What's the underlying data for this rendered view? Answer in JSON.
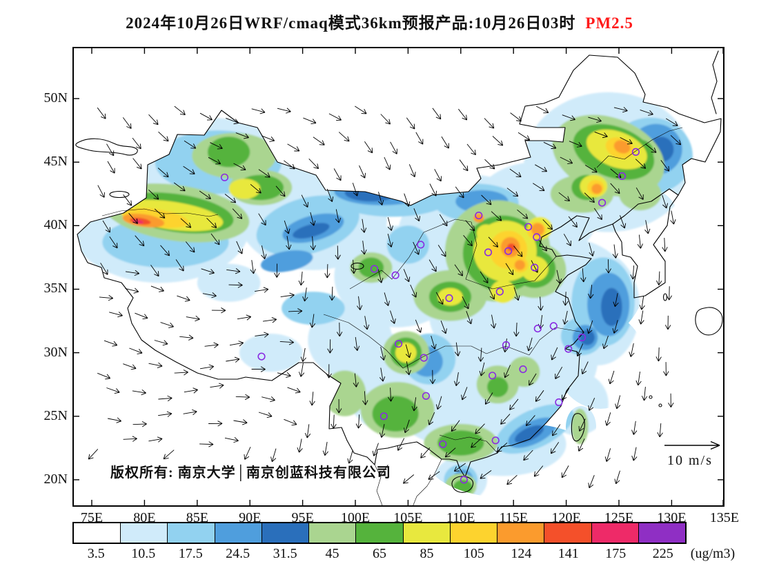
{
  "title": {
    "main": "2024年10月26日WRF/cmaq模式36km预报产品:10月26日03时",
    "species": "PM2.5",
    "species_color": "#ff1a1a"
  },
  "axes": {
    "lat_labels": [
      "50N",
      "45N",
      "40N",
      "35N",
      "30N",
      "25N",
      "20N"
    ],
    "lon_labels": [
      "75E",
      "80E",
      "85E",
      "90E",
      "95E",
      "100E",
      "105E",
      "110E",
      "115E",
      "120E",
      "125E",
      "130E",
      "135E"
    ]
  },
  "footer": {
    "copyright": "版权所有: 南京大学│南京创蓝科技有限公司"
  },
  "wind_legend": {
    "label": "10 m/s"
  },
  "colorbar": {
    "unit": "(ug/m3)",
    "labels": [
      "3.5",
      "10.5",
      "17.5",
      "24.5",
      "31.5",
      "45",
      "65",
      "85",
      "105",
      "124",
      "141",
      "175",
      "225"
    ],
    "colors": [
      "#ffffff",
      "#d0ebfa",
      "#92d2f0",
      "#4f9edd",
      "#2a6fbb",
      "#aad590",
      "#55b33c",
      "#e8e83e",
      "#fdd32e",
      "#fb9b2d",
      "#f4502a",
      "#ee2a68",
      "#8f2fc4"
    ]
  },
  "chart_data": {
    "type": "heatmap",
    "variant": "filled contour forecast map with wind vectors",
    "variable": "PM2.5",
    "unit": "ug/m3",
    "model": "WRF/cmaq 模式 36km 预报产品",
    "valid_time_label": "2024年10月26日 / 10月26日03时",
    "lon_range": [
      75,
      135
    ],
    "lat_range": [
      20,
      50
    ],
    "contour_levels": [
      3.5,
      10.5,
      17.5,
      24.5,
      31.5,
      45,
      65,
      85,
      105,
      124,
      141,
      175,
      225
    ],
    "palette": [
      "#ffffff",
      "#d0ebfa",
      "#92d2f0",
      "#4f9edd",
      "#2a6fbb",
      "#aad590",
      "#55b33c",
      "#e8e83e",
      "#fdd32e",
      "#fb9b2d",
      "#f4502a",
      "#ee2a68",
      "#8f2fc4"
    ],
    "wind_reference_ms": 10,
    "high_value_regions": [
      {
        "region": "Tarim Basin southern Xinjiang ~78-85E, 39-41.5N",
        "approx_range_ugm3": [
          65,
          175
        ]
      },
      {
        "region": "North China Plain Hebei-Shandong-Henan ~112-118E, 34-40N",
        "approx_range_ugm3": [
          45,
          141
        ]
      },
      {
        "region": "Northeast China ~121-127E, 42-47N",
        "approx_range_ugm3": [
          45,
          124
        ]
      },
      {
        "region": "Sichuan Basin ~103-107E, 29-31.5N",
        "approx_range_ugm3": [
          31.5,
          85
        ]
      },
      {
        "region": "Tibetan Plateau and Mongolia border band",
        "approx_range_ugm3": [
          0,
          10.5
        ]
      }
    ]
  },
  "map": {
    "city_marker_color": "#8a2be2",
    "cities": [
      [
        87.6,
        43.8
      ],
      [
        111.7,
        40.8
      ],
      [
        116.4,
        39.9
      ],
      [
        117.2,
        39.1
      ],
      [
        114.5,
        38.0
      ],
      [
        112.6,
        37.9
      ],
      [
        123.4,
        41.8
      ],
      [
        125.3,
        43.9
      ],
      [
        126.6,
        45.8
      ],
      [
        117.0,
        36.7
      ],
      [
        113.7,
        34.8
      ],
      [
        108.9,
        34.3
      ],
      [
        103.8,
        36.1
      ],
      [
        101.8,
        36.6
      ],
      [
        106.2,
        38.5
      ],
      [
        91.1,
        29.7
      ],
      [
        104.1,
        30.7
      ],
      [
        106.5,
        29.6
      ],
      [
        114.3,
        30.6
      ],
      [
        117.3,
        31.9
      ],
      [
        118.8,
        32.1
      ],
      [
        121.5,
        31.2
      ],
      [
        120.2,
        30.3
      ],
      [
        115.9,
        28.7
      ],
      [
        113.0,
        28.2
      ],
      [
        106.7,
        26.6
      ],
      [
        102.7,
        25.0
      ],
      [
        119.3,
        26.1
      ],
      [
        113.3,
        23.1
      ],
      [
        108.3,
        22.8
      ],
      [
        110.3,
        20.0
      ]
    ],
    "field_blobs": [
      [
        86,
        44.5,
        9,
        4,
        0,
        1
      ],
      [
        81.5,
        40,
        8.5,
        4.5,
        0,
        1
      ],
      [
        96,
        40.5,
        7,
        4,
        0,
        1
      ],
      [
        104,
        36,
        6,
        4,
        0,
        1
      ],
      [
        111,
        39,
        7,
        5,
        0,
        1
      ],
      [
        117,
        41,
        6,
        4,
        0,
        1
      ],
      [
        124,
        45,
        8,
        5.5,
        0,
        1
      ],
      [
        120,
        35,
        6,
        4,
        0,
        1
      ],
      [
        113,
        33,
        6,
        4,
        0,
        1
      ],
      [
        118,
        29.5,
        5,
        4,
        0,
        1
      ],
      [
        123,
        33.5,
        4,
        4.5,
        0,
        1
      ],
      [
        110,
        27,
        7,
        4.5,
        0,
        1
      ],
      [
        104,
        27.5,
        5,
        4,
        0,
        1
      ],
      [
        114,
        22.8,
        6,
        2.5,
        0,
        1
      ],
      [
        99.5,
        31,
        4,
        3,
        0,
        1
      ],
      [
        92,
        30,
        3,
        1.5,
        0,
        1
      ],
      [
        121,
        26,
        3,
        2.5,
        0,
        1
      ],
      [
        110,
        20,
        2.5,
        1.8,
        0,
        1
      ],
      [
        88,
        35.5,
        3,
        1.5,
        0,
        1
      ],
      [
        87,
        45,
        6,
        2.5,
        0,
        2
      ],
      [
        82,
        38.7,
        6,
        2,
        0,
        2
      ],
      [
        95.5,
        40,
        5,
        2.2,
        -15,
        2
      ],
      [
        103.5,
        42.5,
        6,
        1.8,
        0,
        2
      ],
      [
        111.5,
        41.8,
        4,
        1.5,
        0,
        2
      ],
      [
        123.5,
        34,
        3,
        3.5,
        0,
        2
      ],
      [
        128,
        45.5,
        4,
        3,
        0,
        2
      ],
      [
        121.5,
        31.3,
        2,
        1.5,
        0,
        2
      ],
      [
        117,
        24,
        4,
        1.5,
        -25,
        2
      ],
      [
        107,
        29.5,
        2.5,
        2,
        0,
        2
      ],
      [
        105,
        38.5,
        2,
        1.5,
        0,
        2
      ],
      [
        96,
        33.5,
        3,
        1.3,
        0,
        2
      ],
      [
        110,
        20,
        1.6,
        1.2,
        0,
        2
      ],
      [
        102.5,
        42.7,
        4.5,
        1.1,
        0,
        3
      ],
      [
        112,
        41.9,
        2.5,
        0.9,
        0,
        3
      ],
      [
        124,
        33.8,
        2,
        2.5,
        0,
        3
      ],
      [
        128.5,
        46,
        2.5,
        2,
        0,
        3
      ],
      [
        121.8,
        31.2,
        1.2,
        1,
        0,
        3
      ],
      [
        116.8,
        23.7,
        2.5,
        0.9,
        -25,
        3
      ],
      [
        96,
        39.8,
        3,
        1,
        -15,
        3
      ],
      [
        110.2,
        19.9,
        1,
        0.9,
        0,
        3
      ],
      [
        93.5,
        37.2,
        2.5,
        0.8,
        -10,
        3
      ],
      [
        106.8,
        29.3,
        1.5,
        1.2,
        0,
        3
      ],
      [
        101.5,
        42.6,
        2.5,
        0.7,
        0,
        4
      ],
      [
        124.3,
        33.6,
        1,
        1.5,
        0,
        4
      ],
      [
        122,
        31.2,
        0.7,
        0.6,
        0,
        4
      ],
      [
        116.5,
        23.6,
        1.5,
        0.5,
        -25,
        4
      ],
      [
        110.2,
        19.8,
        0.6,
        0.5,
        0,
        4
      ],
      [
        95.8,
        39.6,
        1.8,
        0.5,
        -15,
        4
      ],
      [
        129,
        46,
        1.2,
        1,
        0,
        4
      ],
      [
        83,
        41,
        7,
        2.2,
        8,
        5
      ],
      [
        88.5,
        45.5,
        4,
        1.8,
        0,
        5
      ],
      [
        113.5,
        38,
        5,
        4,
        0,
        5
      ],
      [
        124,
        45.5,
        5.5,
        3,
        20,
        5
      ],
      [
        121.5,
        42.5,
        3,
        1.5,
        0,
        5
      ],
      [
        117,
        36.5,
        3,
        2.2,
        0,
        5
      ],
      [
        109,
        34.5,
        3.5,
        2,
        0,
        5
      ],
      [
        104.8,
        30,
        2.2,
        1.7,
        0,
        5
      ],
      [
        104,
        25.5,
        3.5,
        2.2,
        0,
        5
      ],
      [
        110,
        22.9,
        3.5,
        1.5,
        0,
        5
      ],
      [
        113.5,
        27.5,
        2,
        1.5,
        0,
        5
      ],
      [
        116,
        28.5,
        1.5,
        1.2,
        0,
        5
      ],
      [
        101.5,
        36.7,
        2,
        1.2,
        0,
        5
      ],
      [
        99,
        26.8,
        2,
        1.8,
        0,
        5
      ],
      [
        121.3,
        24.2,
        0.8,
        1.4,
        0,
        5
      ],
      [
        110,
        19.5,
        1.5,
        1,
        0,
        5
      ],
      [
        127,
        42.5,
        2,
        1.3,
        0,
        5
      ],
      [
        91,
        43,
        3,
        1.4,
        0,
        5
      ],
      [
        83,
        41,
        5.5,
        1.5,
        8,
        6
      ],
      [
        114,
        37.8,
        3.8,
        3,
        0,
        6
      ],
      [
        124.5,
        45.8,
        4,
        2,
        20,
        6
      ],
      [
        117,
        36.6,
        2,
        1.5,
        0,
        6
      ],
      [
        109,
        34.4,
        2,
        1.2,
        0,
        6
      ],
      [
        104.8,
        30,
        1.5,
        1.2,
        0,
        6
      ],
      [
        103.8,
        25.2,
        2.2,
        1.4,
        0,
        6
      ],
      [
        110,
        22.9,
        2.2,
        1,
        0,
        6
      ],
      [
        122,
        43,
        1.5,
        1,
        0,
        6
      ],
      [
        101.5,
        36.7,
        1.2,
        0.8,
        0,
        6
      ],
      [
        126.8,
        45.8,
        1.5,
        1,
        0,
        6
      ],
      [
        110.2,
        19.4,
        0.9,
        0.6,
        0,
        6
      ],
      [
        113.5,
        27.3,
        1,
        0.8,
        0,
        6
      ],
      [
        88,
        45.8,
        2,
        1.2,
        0,
        6
      ],
      [
        91,
        43,
        2.2,
        1,
        0,
        6
      ],
      [
        82.5,
        40.8,
        5,
        1.1,
        8,
        7
      ],
      [
        114.2,
        38,
        3,
        2.4,
        0,
        7
      ],
      [
        124.8,
        46,
        3,
        1.4,
        20,
        7
      ],
      [
        117,
        36.6,
        1.3,
        1,
        0,
        7
      ],
      [
        104.8,
        30,
        1,
        0.8,
        0,
        7
      ],
      [
        89.5,
        42.9,
        1.5,
        0.8,
        0,
        7
      ],
      [
        109,
        34.4,
        1.2,
        0.7,
        0,
        7
      ],
      [
        122.6,
        43.1,
        1.3,
        0.9,
        0,
        7
      ],
      [
        112.4,
        39.4,
        0.9,
        0.7,
        0,
        7
      ],
      [
        117.5,
        39.8,
        1.2,
        0.9,
        0,
        7
      ],
      [
        114,
        34.8,
        1.2,
        0.9,
        0,
        7
      ],
      [
        81,
        40.6,
        3.2,
        0.7,
        8,
        8
      ],
      [
        114.5,
        38.1,
        1.8,
        1.5,
        0,
        8
      ],
      [
        117.2,
        39.6,
        0.9,
        0.7,
        0,
        8
      ],
      [
        125.1,
        46.1,
        1.4,
        0.8,
        20,
        8
      ],
      [
        115.6,
        36.9,
        0.8,
        0.6,
        0,
        8
      ],
      [
        122.8,
        43,
        0.8,
        0.6,
        0,
        8
      ],
      [
        79.9,
        40.4,
        2,
        0.5,
        8,
        9
      ],
      [
        114.7,
        38.3,
        0.9,
        0.8,
        0,
        9
      ],
      [
        117.3,
        39.7,
        0.6,
        0.5,
        0,
        9
      ],
      [
        125.3,
        46.2,
        0.8,
        0.5,
        20,
        9
      ],
      [
        122.9,
        42.9,
        0.5,
        0.4,
        0,
        9
      ],
      [
        115.6,
        36.9,
        0.5,
        0.4,
        0,
        9
      ],
      [
        111.7,
        40.6,
        0.5,
        0.35,
        0,
        9
      ],
      [
        79.6,
        40.35,
        1,
        0.25,
        8,
        10
      ],
      [
        114.8,
        38.3,
        0.4,
        0.3,
        0,
        10
      ],
      [
        93.6,
        27.3,
        0.7,
        0.3,
        30,
        10
      ],
      [
        79.4,
        40.3,
        0.5,
        0.15,
        8,
        11
      ],
      [
        93.5,
        27.25,
        0.35,
        0.15,
        30,
        11
      ]
    ]
  }
}
